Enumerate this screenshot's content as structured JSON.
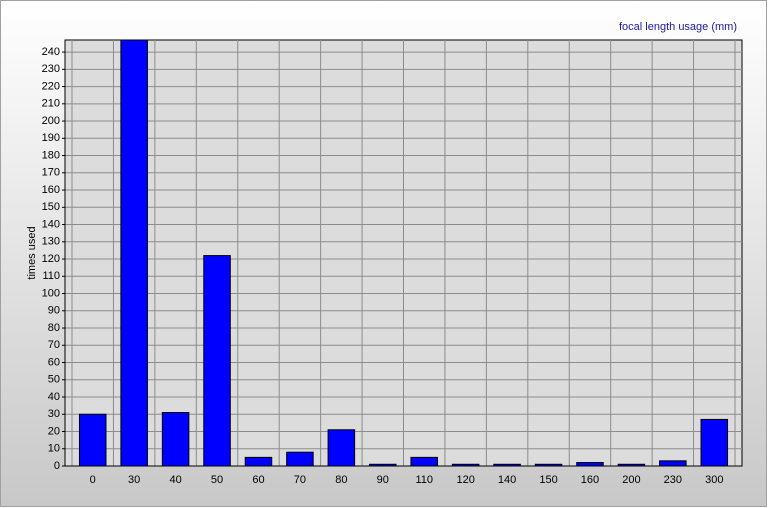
{
  "chart_data": {
    "type": "bar",
    "title": "focal length usage (mm)",
    "y_label": "times used",
    "categories": [
      "0",
      "30",
      "40",
      "50",
      "60",
      "70",
      "80",
      "90",
      "110",
      "120",
      "140",
      "150",
      "160",
      "200",
      "230",
      "300"
    ],
    "values": [
      30,
      247,
      31,
      122,
      5,
      8,
      21,
      1,
      5,
      1,
      1,
      1,
      2,
      1,
      3,
      27
    ],
    "color": "#0000ff",
    "ylim": [
      0,
      247
    ],
    "yticks": [
      0,
      10,
      20,
      30,
      40,
      50,
      60,
      70,
      80,
      90,
      100,
      110,
      120,
      130,
      140,
      150,
      160,
      170,
      180,
      190,
      200,
      210,
      220,
      230,
      240
    ],
    "grid": true
  }
}
